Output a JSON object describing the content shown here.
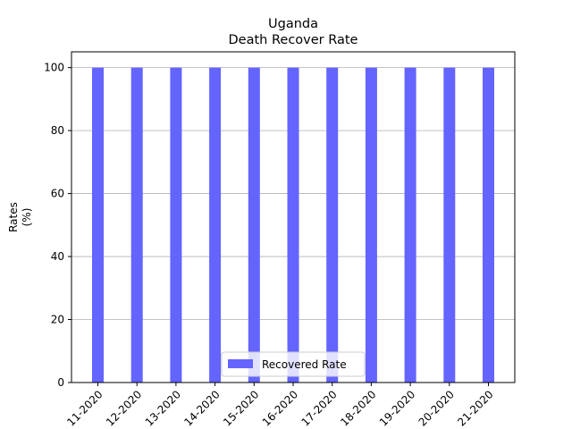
{
  "chart_data": {
    "type": "bar",
    "title": "Uganda",
    "subtitle": "Death Recover Rate",
    "ylabel_line1": "Rates",
    "ylabel_line2": "(%)",
    "xlabel": "",
    "categories": [
      "11-2020",
      "12-2020",
      "13-2020",
      "14-2020",
      "15-2020",
      "16-2020",
      "17-2020",
      "18-2020",
      "19-2020",
      "20-2020",
      "21-2020"
    ],
    "series": [
      {
        "name": "Recovered Rate",
        "values": [
          100,
          100,
          100,
          100,
          100,
          100,
          100,
          100,
          100,
          100,
          100
        ],
        "color": "#6464ff"
      }
    ],
    "ylim": [
      0,
      105
    ],
    "yticks": [
      0,
      20,
      40,
      60,
      80,
      100
    ],
    "grid": "horizontal",
    "legend_position": "bottom-center"
  }
}
